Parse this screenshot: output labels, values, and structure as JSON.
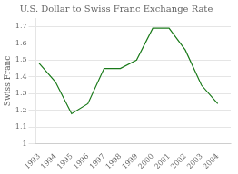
{
  "chart_data": {
    "type": "line",
    "title": "U.S. Dollar to Swiss Franc Exchange Rate",
    "y_label": "Swiss Franc",
    "x": [
      1993,
      1994,
      1995,
      1996,
      1997,
      1998,
      1999,
      2000,
      2001,
      2002,
      2003,
      2004
    ],
    "values": [
      1.48,
      1.37,
      1.18,
      1.24,
      1.45,
      1.45,
      1.5,
      1.69,
      1.69,
      1.56,
      1.35,
      1.24
    ],
    "color": "#1a7a1a",
    "xlim": [
      1992.8,
      2004.8
    ],
    "xticks": [
      1993,
      1994,
      1995,
      1996,
      1997,
      1998,
      1999,
      2000,
      2001,
      2002,
      2003,
      2004
    ],
    "ylim": [
      1.0,
      1.75
    ],
    "yticks": [
      1.0,
      1.1,
      1.2,
      1.3,
      1.4,
      1.5,
      1.6,
      1.7
    ],
    "grid": "y"
  }
}
